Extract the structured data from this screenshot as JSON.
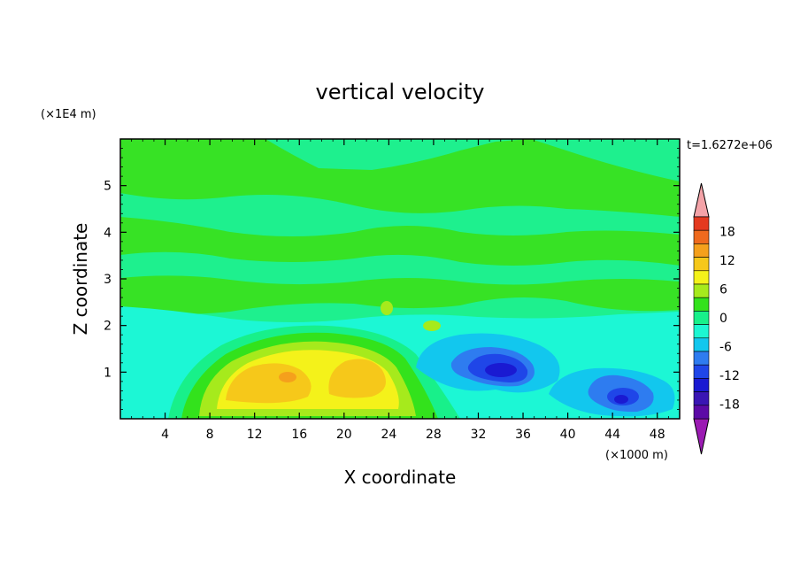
{
  "chart_data": {
    "type": "heatmap",
    "title": "vertical velocity",
    "xlabel": "X coordinate",
    "ylabel": "Z coordinate",
    "x_unit": "(×1000 m)",
    "y_unit": "(×1E4 m)",
    "time_label": "t=1.6272e+06",
    "xlim": [
      0,
      50
    ],
    "ylim": [
      0,
      6
    ],
    "x_ticks": [
      4,
      8,
      12,
      16,
      20,
      24,
      28,
      32,
      36,
      40,
      44,
      48
    ],
    "y_ticks": [
      1,
      2,
      3,
      4,
      5
    ],
    "colorbar": {
      "levels": [
        -21,
        -18,
        -15,
        -12,
        -9,
        -6,
        -3,
        0,
        3,
        6,
        9,
        12,
        15,
        18,
        21
      ],
      "colors": [
        "#5c0aa6",
        "#3a16b4",
        "#1a1ad2",
        "#1f46e8",
        "#2e7cf0",
        "#12c7ee",
        "#1cf7d2",
        "#18f08a",
        "#33e21c",
        "#a6ea1c",
        "#f4f21a",
        "#f6c81a",
        "#f5a01c",
        "#ef6a1d",
        "#e43a20"
      ],
      "under_color": "#9b1bb3",
      "over_color": "#f4a3a8",
      "tick_labels": [
        "18",
        "12",
        "6",
        "0",
        "-6",
        "-12",
        "-18"
      ]
    },
    "background_band_colors": {
      "upper": "#1ef08e",
      "mid": "#37e225",
      "lower": "#1cf7d5"
    },
    "features": [
      {
        "kind": "updraft",
        "x": 14,
        "z": 0.9,
        "value": 12
      },
      {
        "kind": "updraft",
        "x": 20.5,
        "z": 1.0,
        "value": 9
      },
      {
        "kind": "downdraft",
        "x": 33.5,
        "z": 1.05,
        "value": -15
      },
      {
        "kind": "downdraft",
        "x": 44,
        "z": 0.55,
        "value": -12
      }
    ]
  }
}
